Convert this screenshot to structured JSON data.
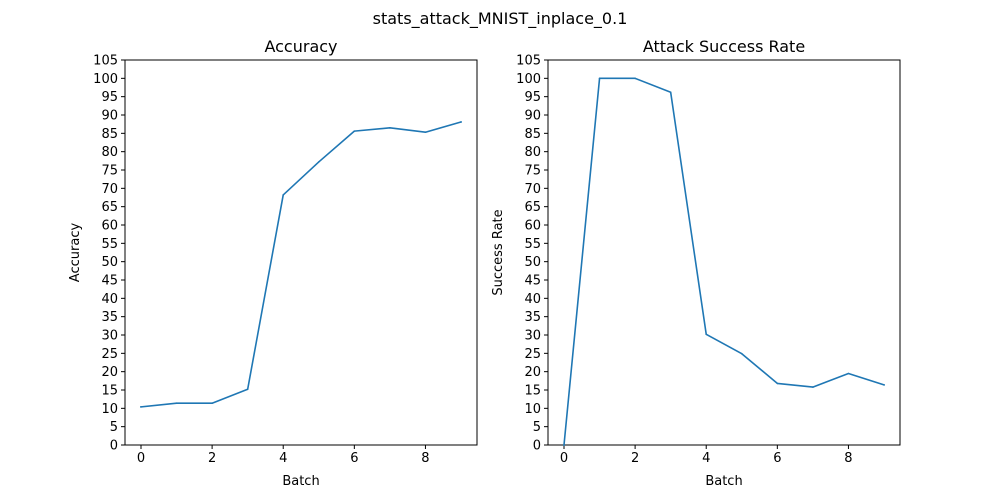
{
  "figure_title": "stats_attack_MNIST_inplace_0.1",
  "chart_data": [
    {
      "type": "line",
      "title": "Accuracy",
      "xlabel": "Batch",
      "ylabel": "Accuracy",
      "xlim": [
        -0.45,
        9.45
      ],
      "ylim": [
        0,
        105
      ],
      "xticks": [
        0,
        2,
        4,
        6,
        8
      ],
      "yticks": [
        0,
        5,
        10,
        15,
        20,
        25,
        30,
        35,
        40,
        45,
        50,
        55,
        60,
        65,
        70,
        75,
        80,
        85,
        90,
        95,
        100,
        105
      ],
      "grid": false,
      "series": [
        {
          "x": [
            0,
            1,
            2,
            3,
            4,
            5,
            6,
            7,
            8,
            9
          ],
          "values": [
            10.4,
            11.4,
            11.4,
            15.2,
            68.2,
            77.2,
            85.6,
            86.5,
            85.3,
            88.1
          ],
          "color": "#1f77b4"
        }
      ]
    },
    {
      "type": "line",
      "title": "Attack Success Rate",
      "xlabel": "Batch",
      "ylabel": "Success Rate",
      "xlim": [
        -0.45,
        9.45
      ],
      "ylim": [
        0,
        105
      ],
      "xticks": [
        0,
        2,
        4,
        6,
        8
      ],
      "yticks": [
        0,
        5,
        10,
        15,
        20,
        25,
        30,
        35,
        40,
        45,
        50,
        55,
        60,
        65,
        70,
        75,
        80,
        85,
        90,
        95,
        100,
        105
      ],
      "grid": false,
      "series": [
        {
          "x": [
            0,
            1,
            2,
            3,
            4,
            5,
            6,
            7,
            8,
            9
          ],
          "values": [
            0,
            100,
            100,
            96.2,
            30.2,
            24.9,
            16.8,
            15.8,
            19.5,
            16.4
          ],
          "color": "#1f77b4"
        }
      ]
    }
  ]
}
